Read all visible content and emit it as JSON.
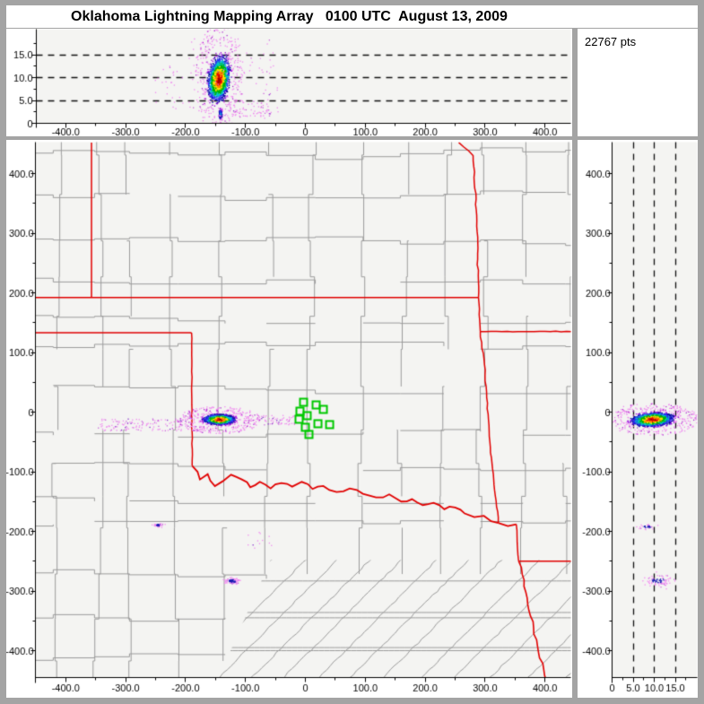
{
  "window": {
    "title": "Oklahoma Lightning Mapping Array   0100 UTC  August 13, 2009",
    "points_count_label": "22767 pts",
    "points_total": 22767
  },
  "palette": {
    "background": "#a4a4a4",
    "panel": "#ffffff",
    "plot_background": "#f4f4f2",
    "county_line": "#9b9b9b",
    "state_border": "#e10000",
    "station_marker": "#00c800",
    "axis": "#000000",
    "density_scale_center_to_edge": [
      "#a00000",
      "#e80000",
      "#ff8200",
      "#ffe000",
      "#00b400",
      "#00c8c8",
      "#2d2df0",
      "#0d0da0",
      "#a012e0",
      "#f08cf0"
    ]
  },
  "chart_data": [
    {
      "id": "ew_altitude",
      "type": "scatter",
      "description": "Altitude (km) vs East-West distance (km) projection",
      "x_range_km": [
        -455,
        443
      ],
      "alt_range_km": [
        0,
        20.5
      ],
      "x_ticks": [
        {
          "v": -400,
          "t": "-400.0"
        },
        {
          "v": -300,
          "t": "-300.0"
        },
        {
          "v": -200,
          "t": "-200.0"
        },
        {
          "v": -100,
          "t": "-100.0"
        },
        {
          "v": 0,
          "t": "0"
        },
        {
          "v": 100,
          "t": "100.0"
        },
        {
          "v": 200,
          "t": "200.0"
        },
        {
          "v": 300,
          "t": "300.0"
        },
        {
          "v": 400,
          "t": "400.0"
        }
      ],
      "alt_ticks": [
        {
          "v": 0,
          "t": "0"
        },
        {
          "v": 5,
          "t": "5.0"
        },
        {
          "v": 10,
          "t": "10.0"
        },
        {
          "v": 15,
          "t": "15.0"
        }
      ],
      "dashed_alt_lines_km": [
        5,
        10,
        15
      ],
      "clusters": [
        {
          "kind": "storm",
          "cx": -144,
          "cy": 9.6,
          "rx": 24,
          "ry": 6.5,
          "shear_x": 0.8,
          "n": 3200
        },
        {
          "kind": "tail",
          "cx": -141,
          "cy": 1.9,
          "rx": 4,
          "ry": 1.7,
          "t_min": 0.5,
          "n": 150
        },
        {
          "kind": "halo",
          "cx": -144,
          "cy": 9.6,
          "rx": 30,
          "ry": 9,
          "n": 260
        },
        {
          "kind": "box",
          "x0": -195,
          "y0": 2,
          "x1": -45,
          "y1": 18.5,
          "n": 110
        },
        {
          "kind": "box",
          "x0": -135,
          "y0": 1,
          "x1": -58,
          "y1": 4.5,
          "n": 70
        },
        {
          "kind": "box",
          "x0": -250,
          "y0": 3,
          "x1": -198,
          "y1": 13,
          "n": 25
        }
      ]
    },
    {
      "id": "plan_view",
      "type": "scatter",
      "description": "Plan view map, North-South vs East-West distance (km)",
      "x_range_km": [
        -455,
        443
      ],
      "y_range_km": [
        -447,
        452
      ],
      "x_ticks": [
        {
          "v": -400,
          "t": "-400.0"
        },
        {
          "v": -300,
          "t": "-300.0"
        },
        {
          "v": -200,
          "t": "-200.0"
        },
        {
          "v": -100,
          "t": "-100.0"
        },
        {
          "v": 0,
          "t": "0"
        },
        {
          "v": 100,
          "t": "100.0"
        },
        {
          "v": 200,
          "t": "200.0"
        },
        {
          "v": 300,
          "t": "300.0"
        },
        {
          "v": 400,
          "t": "400.0"
        }
      ],
      "y_ticks": [
        {
          "v": 400,
          "t": "400.0"
        },
        {
          "v": 300,
          "t": "300.0"
        },
        {
          "v": 200,
          "t": "200.0"
        },
        {
          "v": 100,
          "t": "100.0"
        },
        {
          "v": 0,
          "t": "0"
        },
        {
          "v": -100,
          "t": "-100.0"
        },
        {
          "v": -200,
          "t": "-200.0"
        },
        {
          "v": -300,
          "t": "-300.0"
        },
        {
          "v": -400,
          "t": "-400.0"
        }
      ],
      "map_layers": [
        "county-boundaries",
        "state-boundaries",
        "red-river"
      ],
      "stations_km": [
        [
          -3,
          16.5
        ],
        [
          18,
          12
        ],
        [
          -9,
          1.5
        ],
        [
          30,
          4.5
        ],
        [
          3,
          -6
        ],
        [
          -10.5,
          -12
        ],
        [
          21,
          -19.5
        ],
        [
          40.5,
          -21
        ],
        [
          0,
          -25.5
        ],
        [
          6,
          -37.5
        ]
      ],
      "clusters": [
        {
          "kind": "storm",
          "cx": -143,
          "cy": -13,
          "rx": 34,
          "ry": 11,
          "n": 3400
        },
        {
          "kind": "halo",
          "cx": -143,
          "cy": -14,
          "rx": 52,
          "ry": 17,
          "n": 300
        },
        {
          "kind": "box",
          "x0": -345,
          "y0": -32,
          "x1": -205,
          "y1": -12,
          "n": 130
        },
        {
          "kind": "box",
          "x0": -95,
          "y0": -22,
          "x1": -15,
          "y1": -6,
          "n": 70
        },
        {
          "kind": "small",
          "cx": -245,
          "cy": -190,
          "rx": 13,
          "ry": 4.5,
          "n": 55
        },
        {
          "kind": "small",
          "cx": -122,
          "cy": -284,
          "rx": 22,
          "ry": 9,
          "n": 90
        },
        {
          "kind": "box",
          "x0": -100,
          "y0": -235,
          "x1": -55,
          "y1": -200,
          "n": 12
        }
      ]
    },
    {
      "id": "ns_altitude",
      "type": "scatter",
      "description": "North-South distance (km) vs Altitude (km) projection",
      "alt_range_km": [
        0,
        20.2
      ],
      "y_range_km": [
        -447,
        452
      ],
      "alt_ticks": [
        {
          "v": 0,
          "t": "0"
        },
        {
          "v": 5,
          "t": "5.0"
        },
        {
          "v": 10,
          "t": "10.0"
        },
        {
          "v": 15,
          "t": "15.0"
        }
      ],
      "y_ticks": [
        {
          "v": 400,
          "t": "400.0"
        },
        {
          "v": 300,
          "t": "300.0"
        },
        {
          "v": 200,
          "t": "200.0"
        },
        {
          "v": 100,
          "t": "100.0"
        },
        {
          "v": 0,
          "t": "0"
        },
        {
          "v": -100,
          "t": "-100.0"
        },
        {
          "v": -200,
          "t": "-200.0"
        },
        {
          "v": -300,
          "t": "-300.0"
        },
        {
          "v": -400,
          "t": "-400.0"
        }
      ],
      "dashed_alt_lines_km": [
        5,
        10,
        15
      ],
      "clusters": [
        {
          "kind": "storm",
          "cx": 9.6,
          "cy": -13,
          "rx": 6.5,
          "ry": 15,
          "shear_y": 0.4,
          "n": 3200
        },
        {
          "kind": "halo",
          "cx": 9.6,
          "cy": -13,
          "rx": 8.5,
          "ry": 20,
          "n": 280
        },
        {
          "kind": "small",
          "cx": 8.5,
          "cy": -193,
          "rx": 3,
          "ry": 7,
          "n": 35
        },
        {
          "kind": "small",
          "cx": 11,
          "cy": -283,
          "rx": 5,
          "ry": 16,
          "n": 85
        }
      ]
    }
  ]
}
